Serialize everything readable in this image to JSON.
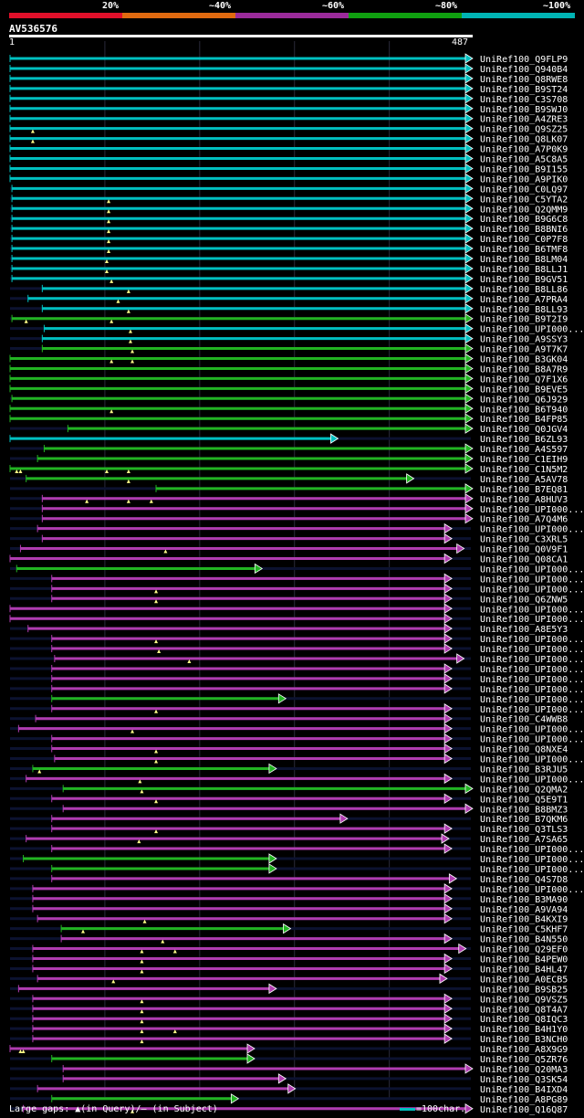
{
  "legend": {
    "percent_labels": [
      "20%",
      "~40%",
      "~60%",
      "~80%",
      "~100%"
    ],
    "colors": [
      "#e0102a",
      "#e06a10",
      "#9b2b9b",
      "#10a010",
      "#00b4b4"
    ]
  },
  "query": {
    "name": "AV536576",
    "start": "1",
    "end": "487"
  },
  "footer": {
    "gap_legend": "Large gaps: ▲(in Query)/― (in Subject)",
    "scale": "=100char."
  },
  "chart_data": {
    "type": "alignment-overview",
    "query_length": 487,
    "identity_bands": [
      "20%",
      "~40%",
      "~60%",
      "~80%",
      "~100%"
    ],
    "hits": [
      {
        "name": "UniRef100_Q9FLP9",
        "start": 1,
        "end": 487,
        "color": "cyan",
        "gaps": []
      },
      {
        "name": "UniRef100_Q940B4",
        "start": 1,
        "end": 487,
        "color": "cyan",
        "gaps": []
      },
      {
        "name": "UniRef100_Q8RWE8",
        "start": 1,
        "end": 487,
        "color": "cyan",
        "gaps": []
      },
      {
        "name": "UniRef100_B9ST24",
        "start": 1,
        "end": 487,
        "color": "cyan",
        "gaps": []
      },
      {
        "name": "UniRef100_C3S708",
        "start": 1,
        "end": 487,
        "color": "cyan",
        "gaps": []
      },
      {
        "name": "UniRef100_B9SWJ0",
        "start": 1,
        "end": 487,
        "color": "cyan",
        "gaps": []
      },
      {
        "name": "UniRef100_A4ZRE3",
        "start": 1,
        "end": 487,
        "color": "cyan",
        "gaps": []
      },
      {
        "name": "UniRef100_Q9SZ25",
        "start": 1,
        "end": 487,
        "color": "cyan",
        "gaps": [
          25
        ]
      },
      {
        "name": "UniRef100_Q8LK07",
        "start": 1,
        "end": 487,
        "color": "cyan",
        "gaps": [
          25
        ]
      },
      {
        "name": "UniRef100_A7P0K9",
        "start": 1,
        "end": 487,
        "color": "cyan",
        "gaps": []
      },
      {
        "name": "UniRef100_A5C8A5",
        "start": 1,
        "end": 487,
        "color": "cyan",
        "gaps": []
      },
      {
        "name": "UniRef100_B9I155",
        "start": 1,
        "end": 487,
        "color": "cyan",
        "gaps": []
      },
      {
        "name": "UniRef100_A9PIK0",
        "start": 1,
        "end": 487,
        "color": "cyan",
        "gaps": []
      },
      {
        "name": "UniRef100_C0LQ97",
        "start": 3,
        "end": 487,
        "color": "cyan",
        "gaps": []
      },
      {
        "name": "UniRef100_C5YTA2",
        "start": 3,
        "end": 487,
        "color": "cyan",
        "gaps": [
          105
        ]
      },
      {
        "name": "UniRef100_Q2QMM9",
        "start": 3,
        "end": 487,
        "color": "cyan",
        "gaps": [
          105
        ]
      },
      {
        "name": "UniRef100_B9G6C8",
        "start": 3,
        "end": 487,
        "color": "cyan",
        "gaps": [
          105
        ]
      },
      {
        "name": "UniRef100_B8BNI6",
        "start": 3,
        "end": 487,
        "color": "cyan",
        "gaps": [
          105
        ]
      },
      {
        "name": "UniRef100_C0P7F8",
        "start": 3,
        "end": 487,
        "color": "cyan",
        "gaps": [
          105
        ]
      },
      {
        "name": "UniRef100_B6TMF8",
        "start": 3,
        "end": 487,
        "color": "cyan",
        "gaps": [
          105
        ]
      },
      {
        "name": "UniRef100_B8LM04",
        "start": 3,
        "end": 487,
        "color": "cyan",
        "gaps": [
          103
        ]
      },
      {
        "name": "UniRef100_B8LLJ1",
        "start": 3,
        "end": 487,
        "color": "cyan",
        "gaps": [
          103
        ]
      },
      {
        "name": "UniRef100_B9GV51",
        "start": 3,
        "end": 487,
        "color": "cyan",
        "gaps": [
          108
        ]
      },
      {
        "name": "UniRef100_B8LL86",
        "start": 35,
        "end": 487,
        "color": "cyan",
        "gaps": [
          126
        ]
      },
      {
        "name": "UniRef100_A7PRA4",
        "start": 20,
        "end": 487,
        "color": "cyan",
        "gaps": [
          115
        ]
      },
      {
        "name": "UniRef100_B8LL93",
        "start": 35,
        "end": 487,
        "color": "cyan",
        "gaps": [
          126
        ]
      },
      {
        "name": "UniRef100_B9T2I9",
        "start": 3,
        "end": 487,
        "color": "green",
        "gaps": [
          18,
          108
        ]
      },
      {
        "name": "UniRef100_UPI000...",
        "start": 37,
        "end": 487,
        "color": "cyan",
        "gaps": [
          128
        ]
      },
      {
        "name": "UniRef100_A9SSY3",
        "start": 35,
        "end": 487,
        "color": "cyan",
        "gaps": [
          128
        ]
      },
      {
        "name": "UniRef100_A9T7K7",
        "start": 35,
        "end": 487,
        "color": "green",
        "gaps": [
          130
        ]
      },
      {
        "name": "UniRef100_B3GK04",
        "start": 1,
        "end": 487,
        "color": "green",
        "gaps": [
          108,
          130
        ]
      },
      {
        "name": "UniRef100_B8A7R9",
        "start": 1,
        "end": 487,
        "color": "green",
        "gaps": []
      },
      {
        "name": "UniRef100_Q7F1X6",
        "start": 1,
        "end": 487,
        "color": "green",
        "gaps": []
      },
      {
        "name": "UniRef100_B9EVE5",
        "start": 1,
        "end": 487,
        "color": "green",
        "gaps": []
      },
      {
        "name": "UniRef100_Q6J929",
        "start": 3,
        "end": 487,
        "color": "green",
        "gaps": []
      },
      {
        "name": "UniRef100_B6T940",
        "start": 1,
        "end": 487,
        "color": "green",
        "gaps": [
          108
        ]
      },
      {
        "name": "UniRef100_B4FP85",
        "start": 1,
        "end": 487,
        "color": "green",
        "gaps": []
      },
      {
        "name": "UniRef100_Q0JGV4",
        "start": 62,
        "end": 487,
        "color": "green",
        "gaps": []
      },
      {
        "name": "UniRef100_B6ZL93",
        "start": 1,
        "end": 345,
        "color": "cyan",
        "gaps": []
      },
      {
        "name": "UniRef100_A4S597",
        "start": 37,
        "end": 487,
        "color": "green",
        "gaps": []
      },
      {
        "name": "UniRef100_C1EIH9",
        "start": 30,
        "end": 487,
        "color": "green",
        "gaps": []
      },
      {
        "name": "UniRef100_C1N5M2",
        "start": 1,
        "end": 487,
        "color": "green",
        "gaps": [
          8,
          12,
          103,
          126
        ]
      },
      {
        "name": "UniRef100_A5AV78",
        "start": 18,
        "end": 425,
        "color": "green",
        "gaps": [
          126
        ]
      },
      {
        "name": "UniRef100_B7EQ81",
        "start": 155,
        "end": 487,
        "color": "green",
        "gaps": []
      },
      {
        "name": "UniRef100_A8HUV3",
        "start": 35,
        "end": 487,
        "color": "magenta",
        "gaps": [
          82,
          126,
          150
        ]
      },
      {
        "name": "UniRef100_UPI000...",
        "start": 35,
        "end": 487,
        "color": "magenta",
        "gaps": []
      },
      {
        "name": "UniRef100_A7Q4M6",
        "start": 35,
        "end": 487,
        "color": "magenta",
        "gaps": []
      },
      {
        "name": "UniRef100_UPI000...",
        "start": 30,
        "end": 465,
        "color": "magenta",
        "gaps": []
      },
      {
        "name": "UniRef100_C3XRL5",
        "start": 35,
        "end": 465,
        "color": "magenta",
        "gaps": []
      },
      {
        "name": "UniRef100_Q0V9F1",
        "start": 12,
        "end": 478,
        "color": "magenta",
        "gaps": [
          165
        ]
      },
      {
        "name": "UniRef100_Q08CA1",
        "start": 1,
        "end": 465,
        "color": "magenta",
        "gaps": []
      },
      {
        "name": "UniRef100_UPI000...",
        "start": 8,
        "end": 265,
        "color": "green",
        "gaps": []
      },
      {
        "name": "UniRef100_UPI000...",
        "start": 45,
        "end": 465,
        "color": "magenta",
        "gaps": []
      },
      {
        "name": "UniRef100_UPI000...",
        "start": 45,
        "end": 465,
        "color": "magenta",
        "gaps": [
          155
        ]
      },
      {
        "name": "UniRef100_Q6ZNW5",
        "start": 45,
        "end": 465,
        "color": "magenta",
        "gaps": [
          155
        ]
      },
      {
        "name": "UniRef100_UPI000...",
        "start": 1,
        "end": 465,
        "color": "magenta",
        "gaps": []
      },
      {
        "name": "UniRef100_UPI000...",
        "start": 1,
        "end": 465,
        "color": "magenta",
        "gaps": []
      },
      {
        "name": "UniRef100_A8E5Y3",
        "start": 20,
        "end": 465,
        "color": "magenta",
        "gaps": []
      },
      {
        "name": "UniRef100_UPI000...",
        "start": 45,
        "end": 465,
        "color": "magenta",
        "gaps": [
          155
        ]
      },
      {
        "name": "UniRef100_UPI000...",
        "start": 45,
        "end": 465,
        "color": "magenta",
        "gaps": [
          158
        ]
      },
      {
        "name": "UniRef100_UPI000...",
        "start": 48,
        "end": 478,
        "color": "magenta",
        "gaps": [
          190
        ]
      },
      {
        "name": "UniRef100_UPI000...",
        "start": 45,
        "end": 465,
        "color": "magenta",
        "gaps": []
      },
      {
        "name": "UniRef100_UPI000...",
        "start": 45,
        "end": 465,
        "color": "magenta",
        "gaps": []
      },
      {
        "name": "UniRef100_UPI000...",
        "start": 45,
        "end": 465,
        "color": "magenta",
        "gaps": []
      },
      {
        "name": "UniRef100_UPI000...",
        "start": 45,
        "end": 290,
        "color": "green",
        "gaps": []
      },
      {
        "name": "UniRef100_UPI000...",
        "start": 45,
        "end": 465,
        "color": "magenta",
        "gaps": [
          155
        ]
      },
      {
        "name": "UniRef100_C4WWB8",
        "start": 28,
        "end": 465,
        "color": "magenta",
        "gaps": []
      },
      {
        "name": "UniRef100_UPI000...",
        "start": 10,
        "end": 465,
        "color": "magenta",
        "gaps": [
          130
        ]
      },
      {
        "name": "UniRef100_UPI000...",
        "start": 45,
        "end": 465,
        "color": "magenta",
        "gaps": []
      },
      {
        "name": "UniRef100_Q8NXE4",
        "start": 45,
        "end": 465,
        "color": "magenta",
        "gaps": [
          155
        ]
      },
      {
        "name": "UniRef100_UPI000...",
        "start": 48,
        "end": 465,
        "color": "magenta",
        "gaps": [
          155
        ]
      },
      {
        "name": "UniRef100_B3RJU5",
        "start": 25,
        "end": 280,
        "color": "green",
        "gaps": [
          32
        ]
      },
      {
        "name": "UniRef100_UPI000...",
        "start": 18,
        "end": 465,
        "color": "magenta",
        "gaps": [
          138
        ]
      },
      {
        "name": "UniRef100_Q2QMA2",
        "start": 57,
        "end": 487,
        "color": "green",
        "gaps": [
          140
        ]
      },
      {
        "name": "UniRef100_Q5E9T1",
        "start": 45,
        "end": 465,
        "color": "magenta",
        "gaps": [
          155
        ]
      },
      {
        "name": "UniRef100_B8BMZ3",
        "start": 57,
        "end": 487,
        "color": "magenta",
        "gaps": []
      },
      {
        "name": "UniRef100_B7QKM6",
        "start": 45,
        "end": 355,
        "color": "magenta",
        "gaps": []
      },
      {
        "name": "UniRef100_Q3TLS3",
        "start": 45,
        "end": 465,
        "color": "magenta",
        "gaps": [
          155
        ]
      },
      {
        "name": "UniRef100_A7SA65",
        "start": 18,
        "end": 462,
        "color": "magenta",
        "gaps": [
          137
        ]
      },
      {
        "name": "UniRef100_UPI000...",
        "start": 45,
        "end": 465,
        "color": "magenta",
        "gaps": []
      },
      {
        "name": "UniRef100_UPI000...",
        "start": 15,
        "end": 280,
        "color": "green",
        "gaps": []
      },
      {
        "name": "UniRef100_UPI000...",
        "start": 45,
        "end": 280,
        "color": "green",
        "gaps": []
      },
      {
        "name": "UniRef100_Q4S7D8",
        "start": 45,
        "end": 470,
        "color": "magenta",
        "gaps": []
      },
      {
        "name": "UniRef100_UPI000...",
        "start": 25,
        "end": 465,
        "color": "magenta",
        "gaps": []
      },
      {
        "name": "UniRef100_B3MA90",
        "start": 25,
        "end": 465,
        "color": "magenta",
        "gaps": []
      },
      {
        "name": "UniRef100_A9VA94",
        "start": 25,
        "end": 465,
        "color": "magenta",
        "gaps": []
      },
      {
        "name": "UniRef100_B4KXI9",
        "start": 30,
        "end": 465,
        "color": "magenta",
        "gaps": [
          143
        ]
      },
      {
        "name": "UniRef100_C5KHF7",
        "start": 55,
        "end": 295,
        "color": "green",
        "gaps": [
          78
        ]
      },
      {
        "name": "UniRef100_B4N550",
        "start": 55,
        "end": 465,
        "color": "magenta",
        "gaps": [
          162
        ]
      },
      {
        "name": "UniRef100_Q29EF0",
        "start": 25,
        "end": 480,
        "color": "magenta",
        "gaps": [
          140,
          175
        ]
      },
      {
        "name": "UniRef100_B4PEW0",
        "start": 25,
        "end": 465,
        "color": "magenta",
        "gaps": [
          140
        ]
      },
      {
        "name": "UniRef100_B4HL47",
        "start": 25,
        "end": 465,
        "color": "magenta",
        "gaps": [
          140
        ]
      },
      {
        "name": "UniRef100_A0ECB5",
        "start": 30,
        "end": 460,
        "color": "magenta",
        "gaps": [
          110
        ]
      },
      {
        "name": "UniRef100_B9SB25",
        "start": 10,
        "end": 280,
        "color": "magenta",
        "gaps": []
      },
      {
        "name": "UniRef100_Q9VSZ5",
        "start": 25,
        "end": 465,
        "color": "magenta",
        "gaps": [
          140
        ]
      },
      {
        "name": "UniRef100_Q8T4A7",
        "start": 25,
        "end": 465,
        "color": "magenta",
        "gaps": [
          140
        ]
      },
      {
        "name": "UniRef100_Q8IQC3",
        "start": 25,
        "end": 465,
        "color": "magenta",
        "gaps": [
          140
        ]
      },
      {
        "name": "UniRef100_B4H1Y0",
        "start": 25,
        "end": 465,
        "color": "magenta",
        "gaps": [
          140,
          175
        ]
      },
      {
        "name": "UniRef100_B3NCH0",
        "start": 25,
        "end": 465,
        "color": "magenta",
        "gaps": [
          140
        ]
      },
      {
        "name": "UniRef100_A8X9G9",
        "start": 1,
        "end": 257,
        "color": "magenta",
        "gaps": [
          12,
          15
        ]
      },
      {
        "name": "UniRef100_Q5ZR76",
        "start": 45,
        "end": 257,
        "color": "green",
        "gaps": []
      },
      {
        "name": "UniRef100_Q20MA3",
        "start": 57,
        "end": 487,
        "color": "magenta",
        "gaps": []
      },
      {
        "name": "UniRef100_Q3SK54",
        "start": 57,
        "end": 290,
        "color": "magenta",
        "gaps": []
      },
      {
        "name": "UniRef100_B4IXD4",
        "start": 30,
        "end": 300,
        "color": "magenta",
        "gaps": []
      },
      {
        "name": "UniRef100_A8PG89",
        "start": 45,
        "end": 240,
        "color": "green",
        "gaps": []
      },
      {
        "name": "UniRef100_Q16Q87",
        "start": 15,
        "end": 487,
        "color": "magenta",
        "gaps": [
          130
        ]
      }
    ]
  }
}
